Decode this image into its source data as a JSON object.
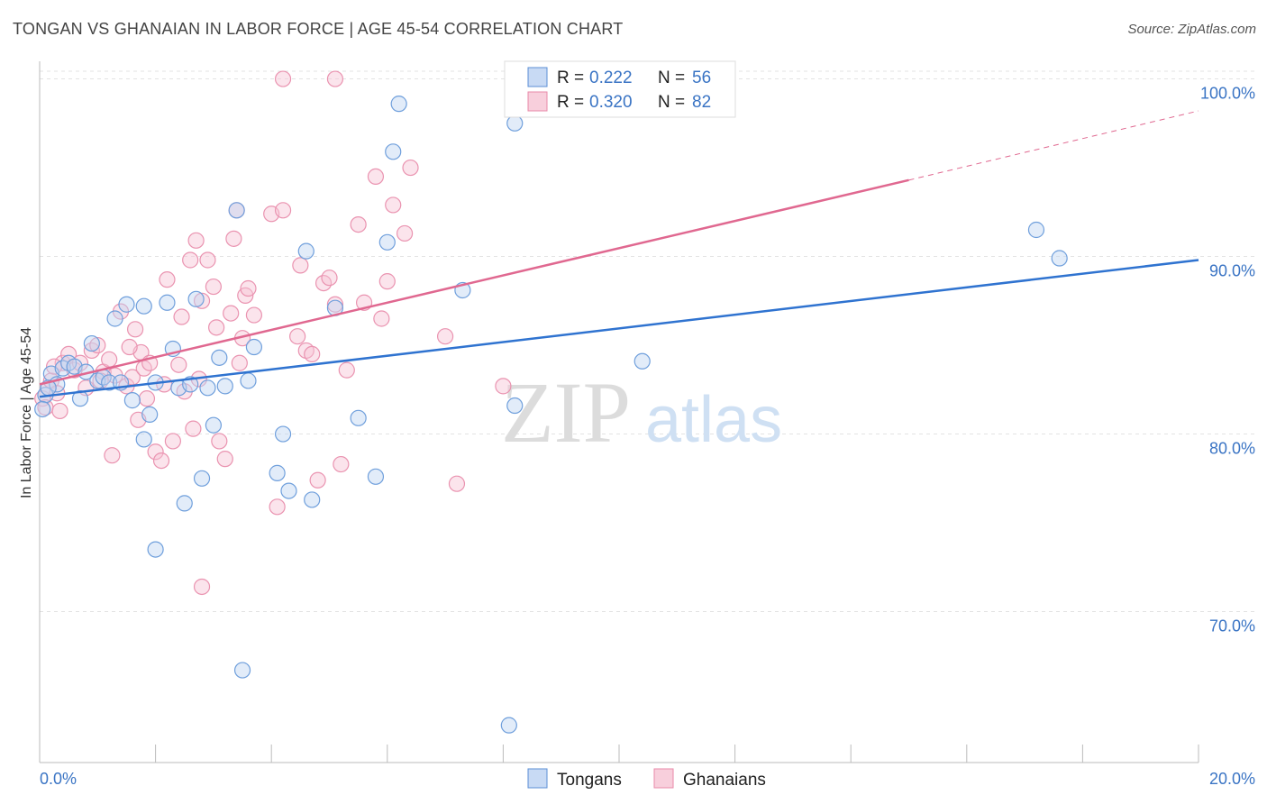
{
  "header": {
    "title": "TONGAN VS GHANAIAN IN LABOR FORCE | AGE 45-54 CORRELATION CHART",
    "source": "Source: ZipAtlas.com"
  },
  "watermark": {
    "zip": "ZIP",
    "atlas": "atlas"
  },
  "chart_data": {
    "type": "scatter",
    "xlabel": "",
    "ylabel": "In Labor Force | Age 45-54",
    "xlim": [
      0,
      20
    ],
    "ylim": [
      61.5,
      101.5
    ],
    "x_tick_labels": [
      "0.0%",
      "20.0%"
    ],
    "y_ticks": [
      70,
      80,
      90,
      100
    ],
    "y_tick_labels": [
      "70.0%",
      "80.0%",
      "90.0%",
      "100.0%"
    ],
    "grid": true,
    "legend_placement": "top-center",
    "colors": {
      "tongans": "#5b8fd6",
      "ghanaians": "#e98aa8",
      "tongans_line": "#2f73d0",
      "ghanaians_line": "#e06890"
    },
    "legend": [
      {
        "r_label": "R =",
        "r_value": "0.222",
        "n_label": "N =",
        "n_value": "56"
      },
      {
        "r_label": "R =",
        "r_value": "0.320",
        "n_label": "N =",
        "n_value": "82"
      }
    ],
    "series": [
      {
        "name": "Tongans",
        "trend": {
          "x": [
            0,
            20
          ],
          "y": [
            82.1,
            89.8
          ]
        },
        "points": [
          [
            0.1,
            82.2
          ],
          [
            0.2,
            83.4
          ],
          [
            0.3,
            82.8
          ],
          [
            0.4,
            83.7
          ],
          [
            0.5,
            84.0
          ],
          [
            0.6,
            83.8
          ],
          [
            0.7,
            82.0
          ],
          [
            0.8,
            83.5
          ],
          [
            0.9,
            85.1
          ],
          [
            1.0,
            83.0
          ],
          [
            1.1,
            83.2
          ],
          [
            1.2,
            82.9
          ],
          [
            1.3,
            86.5
          ],
          [
            1.5,
            87.3
          ],
          [
            1.6,
            81.9
          ],
          [
            1.8,
            87.2
          ],
          [
            1.8,
            79.7
          ],
          [
            1.9,
            81.1
          ],
          [
            2.0,
            73.5
          ],
          [
            2.0,
            82.9
          ],
          [
            2.2,
            87.4
          ],
          [
            2.3,
            84.8
          ],
          [
            2.4,
            82.6
          ],
          [
            2.5,
            76.1
          ],
          [
            2.6,
            82.8
          ],
          [
            2.7,
            87.6
          ],
          [
            2.8,
            77.5
          ],
          [
            2.9,
            82.6
          ],
          [
            3.0,
            80.5
          ],
          [
            3.1,
            84.3
          ],
          [
            3.2,
            82.7
          ],
          [
            3.4,
            92.6
          ],
          [
            3.5,
            66.7
          ],
          [
            3.6,
            83.0
          ],
          [
            3.7,
            84.9
          ],
          [
            4.1,
            77.8
          ],
          [
            4.2,
            80.0
          ],
          [
            4.3,
            76.8
          ],
          [
            4.6,
            90.3
          ],
          [
            4.7,
            76.3
          ],
          [
            5.1,
            87.1
          ],
          [
            5.5,
            80.9
          ],
          [
            5.8,
            77.6
          ],
          [
            6.0,
            90.8
          ],
          [
            6.1,
            95.9
          ],
          [
            6.2,
            98.6
          ],
          [
            7.3,
            88.1
          ],
          [
            8.1,
            63.6
          ],
          [
            8.2,
            97.5
          ],
          [
            8.2,
            81.6
          ],
          [
            10.4,
            84.1
          ],
          [
            17.2,
            91.5
          ],
          [
            17.6,
            89.9
          ],
          [
            0.05,
            81.4
          ],
          [
            0.15,
            82.6
          ],
          [
            1.4,
            82.9
          ]
        ]
      },
      {
        "name": "Ghanaians",
        "trend": {
          "x": [
            0,
            15
          ],
          "y": [
            82.8,
            94.3
          ]
        },
        "trend_dashed": {
          "x": [
            15,
            20
          ],
          "y": [
            94.3,
            98.2
          ]
        },
        "points": [
          [
            0.05,
            82.0
          ],
          [
            0.1,
            81.5
          ],
          [
            0.15,
            82.6
          ],
          [
            0.2,
            83.0
          ],
          [
            0.3,
            82.3
          ],
          [
            0.35,
            81.3
          ],
          [
            0.4,
            84.0
          ],
          [
            0.5,
            84.5
          ],
          [
            0.6,
            83.6
          ],
          [
            0.7,
            84.0
          ],
          [
            0.8,
            82.6
          ],
          [
            0.9,
            84.7
          ],
          [
            1.0,
            85.0
          ],
          [
            1.1,
            83.5
          ],
          [
            1.2,
            84.2
          ],
          [
            1.25,
            78.8
          ],
          [
            1.3,
            83.3
          ],
          [
            1.4,
            86.9
          ],
          [
            1.5,
            82.7
          ],
          [
            1.6,
            83.2
          ],
          [
            1.65,
            85.9
          ],
          [
            1.7,
            80.8
          ],
          [
            1.75,
            84.6
          ],
          [
            1.8,
            83.7
          ],
          [
            1.85,
            82.0
          ],
          [
            1.9,
            84.0
          ],
          [
            2.0,
            79.0
          ],
          [
            2.1,
            78.5
          ],
          [
            2.2,
            88.7
          ],
          [
            2.3,
            79.6
          ],
          [
            2.4,
            83.9
          ],
          [
            2.45,
            86.6
          ],
          [
            2.5,
            82.4
          ],
          [
            2.6,
            89.8
          ],
          [
            2.65,
            80.3
          ],
          [
            2.7,
            90.9
          ],
          [
            2.8,
            71.4
          ],
          [
            2.8,
            87.5
          ],
          [
            2.9,
            89.8
          ],
          [
            3.0,
            88.3
          ],
          [
            3.05,
            86.0
          ],
          [
            3.1,
            79.6
          ],
          [
            3.2,
            78.6
          ],
          [
            3.3,
            86.8
          ],
          [
            3.35,
            91.0
          ],
          [
            3.4,
            92.6
          ],
          [
            3.5,
            85.4
          ],
          [
            3.55,
            87.8
          ],
          [
            3.6,
            88.2
          ],
          [
            3.7,
            86.7
          ],
          [
            4.0,
            92.4
          ],
          [
            4.1,
            75.9
          ],
          [
            4.2,
            92.6
          ],
          [
            4.5,
            89.5
          ],
          [
            4.6,
            84.7
          ],
          [
            4.7,
            84.5
          ],
          [
            4.8,
            77.4
          ],
          [
            4.9,
            88.5
          ],
          [
            5.0,
            88.8
          ],
          [
            5.1,
            87.3
          ],
          [
            5.2,
            78.3
          ],
          [
            5.3,
            83.6
          ],
          [
            5.5,
            91.8
          ],
          [
            5.6,
            87.4
          ],
          [
            5.8,
            94.5
          ],
          [
            5.9,
            86.5
          ],
          [
            6.0,
            88.6
          ],
          [
            6.1,
            92.9
          ],
          [
            6.3,
            91.3
          ],
          [
            6.4,
            95.0
          ],
          [
            7.0,
            85.5
          ],
          [
            7.2,
            77.2
          ],
          [
            8.0,
            82.7
          ],
          [
            4.2,
            100.0
          ],
          [
            5.1,
            100.0
          ],
          [
            0.25,
            83.8
          ],
          [
            1.05,
            83.0
          ],
          [
            1.55,
            84.9
          ],
          [
            2.15,
            82.8
          ],
          [
            2.75,
            83.1
          ],
          [
            3.45,
            84.0
          ],
          [
            4.45,
            85.5
          ]
        ]
      }
    ]
  },
  "bottom_legend": {
    "tongans": "Tongans",
    "ghanaians": "Ghanaians"
  }
}
